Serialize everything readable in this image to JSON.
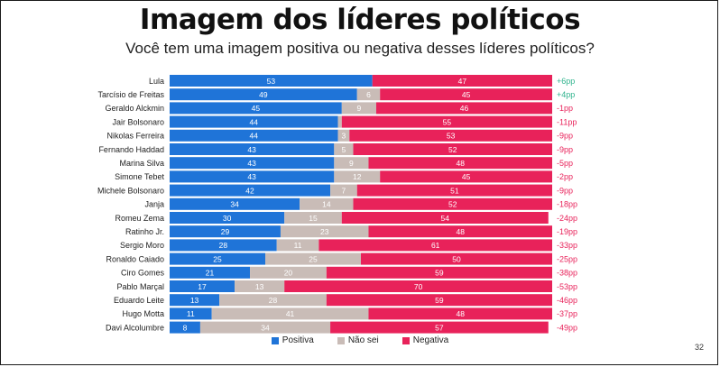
{
  "page": {
    "title": "Imagem dos líderes políticos",
    "subtitle": "Você tem uma imagem positiva ou negativa desses líderes políticos?",
    "page_number": "32"
  },
  "legend": [
    {
      "name": "Positiva",
      "color": "#1f74d8"
    },
    {
      "name": "Não sei",
      "color": "#c9bcb7"
    },
    {
      "name": "Negativa",
      "color": "#e8225a"
    }
  ],
  "colors": {
    "positive_diff": "#2fb38d",
    "negative_diff": "#e8225a",
    "value_text": "#ffffff"
  },
  "chart_data": {
    "type": "bar",
    "orientation": "horizontal",
    "stacked": true,
    "percent_scale": [
      0,
      100
    ],
    "categories": [
      "Lula",
      "Tarcísio de Freitas",
      "Geraldo Alckmin",
      "Jair Bolsonaro",
      "Nikolas Ferreira",
      "Fernando Haddad",
      "Marina Silva",
      "Simone Tebet",
      "Michele Bolsonaro",
      "Janja",
      "Romeu Zema",
      "Ratinho Jr.",
      "Sergio Moro",
      "Ronaldo Caiado",
      "Ciro Gomes",
      "Pablo Marçal",
      "Eduardo Leite",
      "Hugo Motta",
      "Davi Alcolumbre"
    ],
    "series": [
      {
        "name": "Positiva",
        "values": [
          53,
          49,
          45,
          44,
          44,
          43,
          43,
          43,
          42,
          34,
          30,
          29,
          28,
          25,
          21,
          17,
          13,
          11,
          8
        ]
      },
      {
        "name": "Não sei",
        "values": [
          0,
          6,
          9,
          1,
          3,
          5,
          9,
          12,
          7,
          14,
          15,
          23,
          11,
          25,
          20,
          13,
          28,
          41,
          34
        ]
      },
      {
        "name": "Negativa",
        "values": [
          47,
          45,
          46,
          55,
          53,
          52,
          48,
          45,
          51,
          52,
          54,
          48,
          61,
          50,
          59,
          70,
          59,
          48,
          57
        ]
      }
    ],
    "value_labels": {
      "Não sei": [
        "",
        "6",
        "9",
        "",
        "3",
        "5",
        "9",
        "12",
        "7",
        "14",
        "15",
        "23",
        "11",
        "25",
        "20",
        "13",
        "28",
        "41",
        "34"
      ]
    },
    "differences": [
      "+6pp",
      "+4pp",
      "-1pp",
      "-11pp",
      "-9pp",
      "-9pp",
      "-5pp",
      "-2pp",
      "-9pp",
      "-18pp",
      "-24pp",
      "-19pp",
      "-33pp",
      "-25pp",
      "-38pp",
      "-53pp",
      "-46pp",
      "-37pp",
      "-49pp"
    ],
    "legend_position": "bottom",
    "grid": false
  }
}
